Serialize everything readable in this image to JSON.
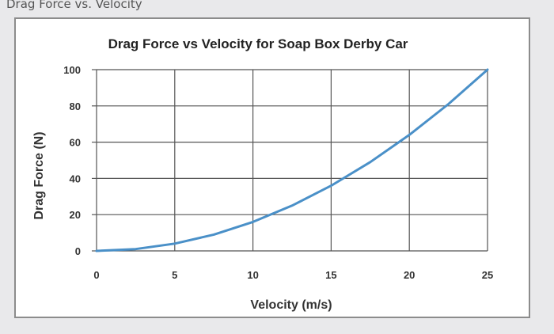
{
  "window": {
    "caption": "Drag Force vs. Velocity"
  },
  "chart_data": {
    "type": "line",
    "title": "Drag Force vs Velocity for Soap Box Derby Car",
    "xlabel": "Velocity (m/s)",
    "ylabel": "Drag Force (N)",
    "xlim": [
      0,
      25
    ],
    "ylim": [
      0,
      100
    ],
    "xticks": [
      0,
      5,
      10,
      15,
      20,
      25
    ],
    "yticks": [
      0,
      20,
      40,
      60,
      80,
      100
    ],
    "grid": true,
    "line_color": "#4a90c8",
    "series": [
      {
        "x": [
          0,
          2.5,
          5,
          7.5,
          10,
          12.5,
          15,
          17.5,
          20,
          22.5,
          25
        ],
        "values": [
          0,
          1,
          4,
          9,
          16,
          25,
          36,
          49,
          64,
          81,
          100
        ]
      }
    ]
  }
}
